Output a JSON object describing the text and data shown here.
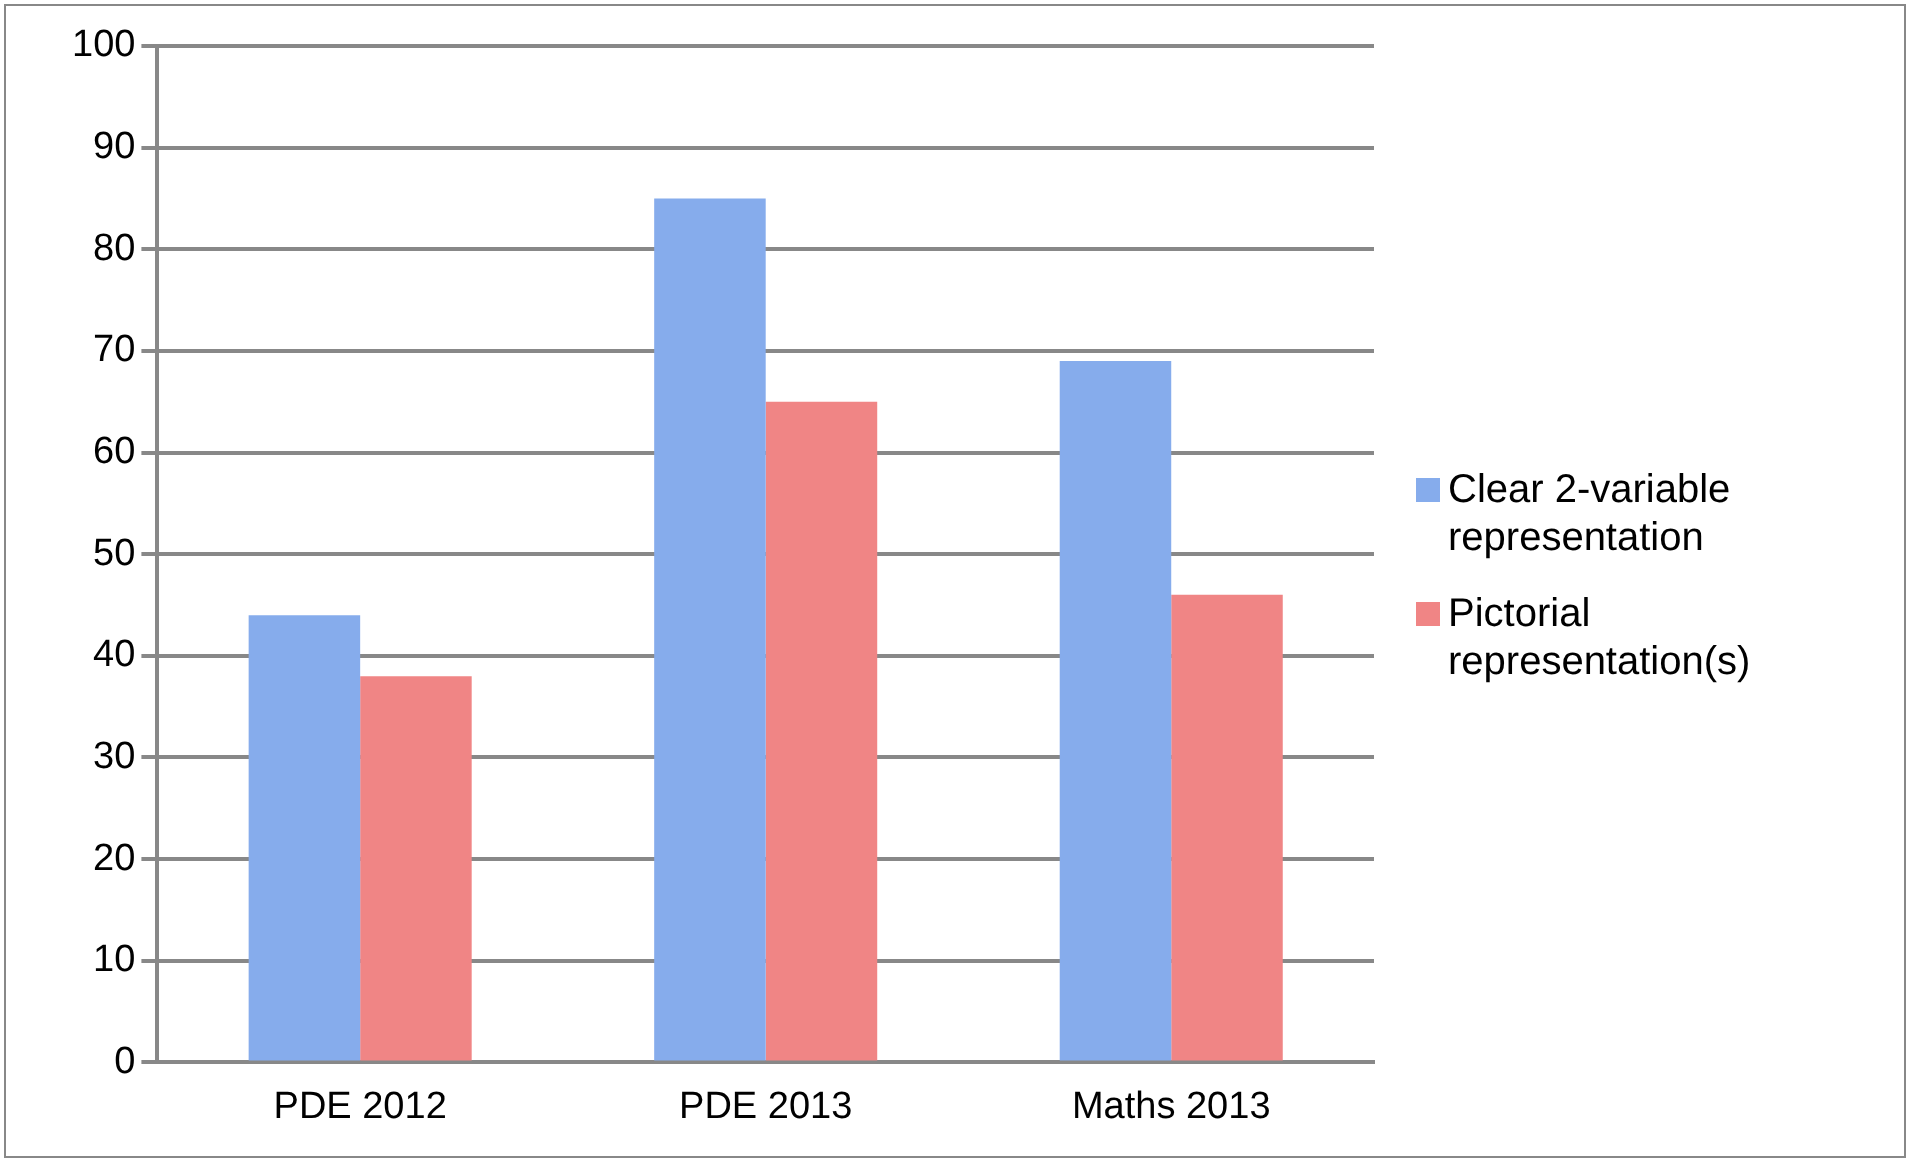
{
  "chart_data": {
    "type": "bar",
    "categories": [
      "PDE 2012",
      "PDE 2013",
      "Maths 2013"
    ],
    "series": [
      {
        "name": "Clear 2-variable representation",
        "color": "#86acec",
        "values": [
          44,
          85,
          69
        ]
      },
      {
        "name": "Pictorial representation(s)",
        "color": "#f08585",
        "values": [
          38,
          65,
          46
        ]
      }
    ],
    "ylim": [
      0,
      100
    ],
    "yticks": [
      0,
      10,
      20,
      30,
      40,
      50,
      60,
      70,
      80,
      90,
      100
    ],
    "grid": "y",
    "legend": "right"
  }
}
